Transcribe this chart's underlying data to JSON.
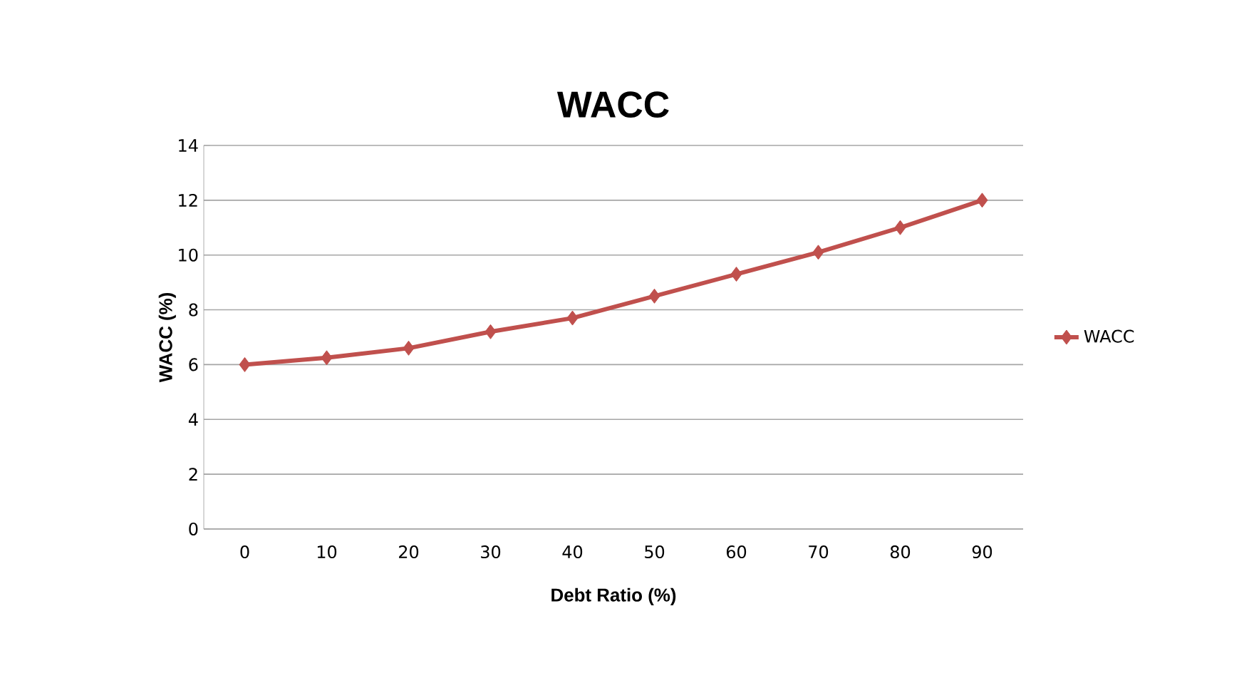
{
  "chart_data": {
    "type": "line",
    "title": "WACC",
    "xlabel": "Debt Ratio (%)",
    "ylabel": "WACC (%)",
    "categories": [
      "0",
      "10",
      "20",
      "30",
      "40",
      "50",
      "60",
      "70",
      "80",
      "90"
    ],
    "series": [
      {
        "name": "WACC",
        "color": "#c0504d",
        "values": [
          6.0,
          6.25,
          6.6,
          7.2,
          7.7,
          8.5,
          9.3,
          10.1,
          11.0,
          12.0
        ]
      }
    ],
    "ylim": [
      0,
      14
    ],
    "yticks": [
      0,
      2,
      4,
      6,
      8,
      10,
      12,
      14
    ],
    "grid": "y",
    "legend": "right",
    "marker": "diamond",
    "line_style": "solid"
  }
}
